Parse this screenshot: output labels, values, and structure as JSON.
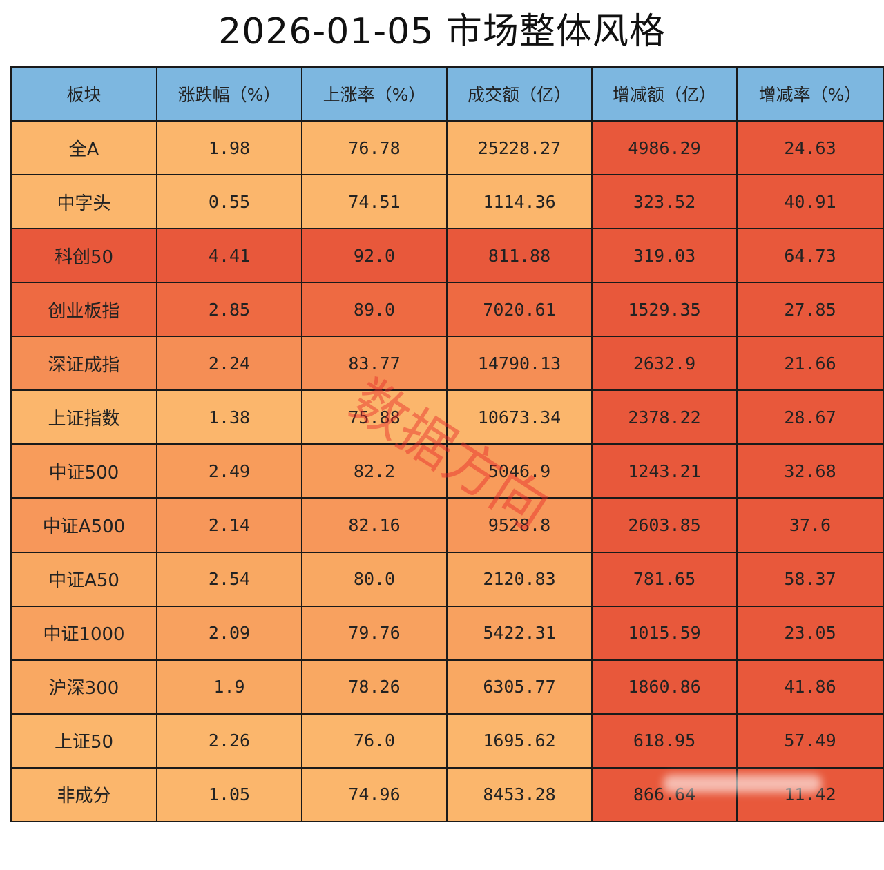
{
  "chart_data": {
    "type": "table",
    "title": "2026-01-05  市场整体风格",
    "columns": [
      "板块",
      "涨跌幅（%）",
      "上涨率（%）",
      "成交额（亿）",
      "增减额（亿）",
      "增减率（%）"
    ],
    "rows": [
      [
        "全A",
        "1.98",
        "76.78",
        "25228.27",
        "4986.29",
        "24.63"
      ],
      [
        "中字头",
        "0.55",
        "74.51",
        "1114.36",
        "323.52",
        "40.91"
      ],
      [
        "科创50",
        "4.41",
        "92.0",
        "811.88",
        "319.03",
        "64.73"
      ],
      [
        "创业板指",
        "2.85",
        "89.0",
        "7020.61",
        "1529.35",
        "27.85"
      ],
      [
        "深证成指",
        "2.24",
        "83.77",
        "14790.13",
        "2632.9",
        "21.66"
      ],
      [
        "上证指数",
        "1.38",
        "75.88",
        "10673.34",
        "2378.22",
        "28.67"
      ],
      [
        "中证500",
        "2.49",
        "82.2",
        "5046.9",
        "1243.21",
        "32.68"
      ],
      [
        "中证A500",
        "2.14",
        "82.16",
        "9528.8",
        "2603.85",
        "37.6"
      ],
      [
        "中证A50",
        "2.54",
        "80.0",
        "2120.83",
        "781.65",
        "58.37"
      ],
      [
        "中证1000",
        "2.09",
        "79.76",
        "5422.31",
        "1015.59",
        "23.05"
      ],
      [
        "沪深300",
        "1.9",
        "78.26",
        "6305.77",
        "1860.86",
        "41.86"
      ],
      [
        "上证50",
        "2.26",
        "76.0",
        "1695.62",
        "618.95",
        "57.49"
      ],
      [
        "非成分",
        "1.05",
        "74.96",
        "8453.28",
        "866.64",
        "11.42"
      ]
    ],
    "row_colors": [
      [
        "#fbb66c",
        "#fbb66c",
        "#fbb66c",
        "#fbb66c",
        "#e8583b",
        "#e8583b"
      ],
      [
        "#fbb66c",
        "#fbb66c",
        "#fbb66c",
        "#fbb66c",
        "#e8583b",
        "#e8583b"
      ],
      [
        "#e8583b",
        "#e8583b",
        "#e8583b",
        "#e8583b",
        "#e8583b",
        "#e8583b"
      ],
      [
        "#ee6a42",
        "#ee6a42",
        "#ee6a42",
        "#ee6a42",
        "#e8583b",
        "#e8583b"
      ],
      [
        "#f58e55",
        "#f58e55",
        "#f58e55",
        "#f58e55",
        "#e8583b",
        "#e8583b"
      ],
      [
        "#fbb66c",
        "#fbb66c",
        "#fbb66c",
        "#fbb66c",
        "#e8583b",
        "#e8583b"
      ],
      [
        "#f89c5b",
        "#f89c5b",
        "#f89c5b",
        "#f89c5b",
        "#e8583b",
        "#e8583b"
      ],
      [
        "#f7975a",
        "#f7975a",
        "#f7975a",
        "#f7975a",
        "#e8583b",
        "#e8583b"
      ],
      [
        "#f9a862",
        "#f9a862",
        "#f9a862",
        "#f9a862",
        "#e8583b",
        "#e8583b"
      ],
      [
        "#f8a15f",
        "#f8a15f",
        "#f8a15f",
        "#f8a15f",
        "#e8583b",
        "#e8583b"
      ],
      [
        "#f9a862",
        "#f9a862",
        "#f9a862",
        "#f9a862",
        "#e8583b",
        "#e8583b"
      ],
      [
        "#fbb66c",
        "#fbb66c",
        "#fbb66c",
        "#fbb66c",
        "#e8583b",
        "#e8583b"
      ],
      [
        "#fbb66c",
        "#fbb66c",
        "#fbb66c",
        "#fbb66c",
        "#e8583b",
        "#e8583b"
      ]
    ],
    "header_color": "#7db7e0"
  },
  "watermark": {
    "text": "数据方向"
  }
}
